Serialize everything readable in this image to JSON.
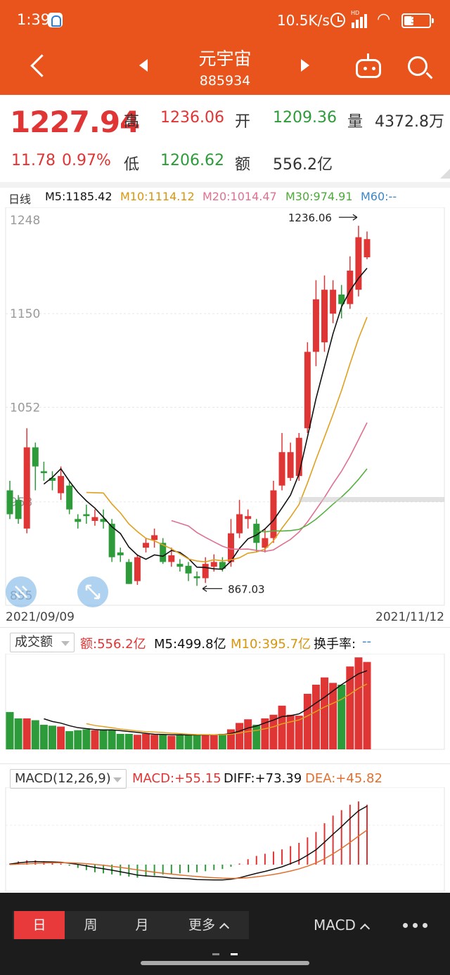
{
  "status_bar": {
    "time": "1:39",
    "net_rate": "10.5K/s",
    "network": "HD",
    "battery": "37"
  },
  "nav": {
    "title": "元宇宙",
    "code": "885934"
  },
  "quote": {
    "price": "1227.94",
    "change": "11.78",
    "change_pct": "0.97%",
    "high_label": "高",
    "high": "1236.06",
    "open_label": "开",
    "open": "1209.36",
    "vol_label": "量",
    "vol": "4372.8万",
    "low_label": "低",
    "low": "1206.62",
    "amt_label": "额",
    "amt": "556.2亿"
  },
  "kline_legend": {
    "period": "日线",
    "m5": "M5:1185.42",
    "m10": "M10:1114.12",
    "m20": "M20:1014.47",
    "m30": "M30:974.91",
    "m60": "M60:--"
  },
  "kline_axis": {
    "y1": "1248",
    "y2": "1150",
    "y3": "1052",
    "y4": "953",
    "y5": "855"
  },
  "annotations": {
    "max": "1236.06",
    "min": "867.03"
  },
  "dates": {
    "start": "2021/09/09",
    "end": "2021/11/12"
  },
  "volume": {
    "selector": "成交额",
    "amt": "额:556.2亿",
    "m5": "M5:499.8亿",
    "m10": "M10:395.7亿",
    "turnover": "换手率:",
    "turnover_val": "--"
  },
  "macd": {
    "selector": "MACD(12,26,9)",
    "macd": "MACD:+55.15",
    "diff": "DIFF:+73.39",
    "dea": "DEA:+45.82"
  },
  "bottom": {
    "tab_day": "日",
    "tab_week": "周",
    "tab_month": "月",
    "tab_more": "更多",
    "indicator": "MACD"
  },
  "colors": {
    "header": "#e9541c",
    "up": "#e03535",
    "down": "#2e9b3a",
    "m5": "#111111",
    "m10": "#e0a020",
    "m20": "#e07090",
    "m30": "#55b040"
  },
  "chart_data": [
    {
      "type": "candlestick",
      "title": "日线",
      "x_range": [
        "2021/09/09",
        "2021/11/12"
      ],
      "ylim": [
        855,
        1248
      ],
      "y_ticks": [
        1248,
        1150,
        1052,
        953,
        855
      ],
      "candles": [
        {
          "o": 965,
          "c": 940,
          "h": 975,
          "l": 935
        },
        {
          "o": 955,
          "c": 935,
          "h": 960,
          "l": 930
        },
        {
          "o": 925,
          "c": 1010,
          "h": 1030,
          "l": 920
        },
        {
          "o": 1010,
          "c": 990,
          "h": 1015,
          "l": 965
        },
        {
          "o": 985,
          "c": 983,
          "h": 995,
          "l": 975
        },
        {
          "o": 978,
          "c": 975,
          "h": 985,
          "l": 965
        },
        {
          "o": 962,
          "c": 980,
          "h": 990,
          "l": 955
        },
        {
          "o": 970,
          "c": 945,
          "h": 975,
          "l": 940
        },
        {
          "o": 935,
          "c": 932,
          "h": 940,
          "l": 925
        },
        {
          "o": 940,
          "c": 938,
          "h": 950,
          "l": 930
        },
        {
          "o": 933,
          "c": 937,
          "h": 945,
          "l": 928
        },
        {
          "o": 935,
          "c": 932,
          "h": 945,
          "l": 925
        },
        {
          "o": 930,
          "c": 895,
          "h": 935,
          "l": 890
        },
        {
          "o": 900,
          "c": 897,
          "h": 905,
          "l": 890
        },
        {
          "o": 890,
          "c": 867,
          "h": 893,
          "l": 867
        },
        {
          "o": 870,
          "c": 895,
          "h": 898,
          "l": 866
        },
        {
          "o": 905,
          "c": 910,
          "h": 915,
          "l": 900
        },
        {
          "o": 913,
          "c": 918,
          "h": 925,
          "l": 905
        },
        {
          "o": 910,
          "c": 890,
          "h": 915,
          "l": 888
        },
        {
          "o": 890,
          "c": 897,
          "h": 905,
          "l": 885
        },
        {
          "o": 888,
          "c": 885,
          "h": 893,
          "l": 880
        },
        {
          "o": 886,
          "c": 878,
          "h": 890,
          "l": 870
        },
        {
          "o": 875,
          "c": 873,
          "h": 880,
          "l": 865
        },
        {
          "o": 873,
          "c": 888,
          "h": 895,
          "l": 868
        },
        {
          "o": 885,
          "c": 890,
          "h": 898,
          "l": 880
        },
        {
          "o": 890,
          "c": 883,
          "h": 895,
          "l": 880
        },
        {
          "o": 890,
          "c": 920,
          "h": 935,
          "l": 885
        },
        {
          "o": 920,
          "c": 940,
          "h": 955,
          "l": 915
        },
        {
          "o": 935,
          "c": 938,
          "h": 945,
          "l": 925
        },
        {
          "o": 930,
          "c": 910,
          "h": 935,
          "l": 900
        },
        {
          "o": 905,
          "c": 915,
          "h": 925,
          "l": 900
        },
        {
          "o": 915,
          "c": 965,
          "h": 975,
          "l": 910
        },
        {
          "o": 970,
          "c": 1005,
          "h": 1025,
          "l": 965
        },
        {
          "o": 978,
          "c": 1005,
          "h": 1015,
          "l": 975
        },
        {
          "o": 980,
          "c": 1020,
          "h": 1025,
          "l": 975
        },
        {
          "o": 1030,
          "c": 1110,
          "h": 1120,
          "l": 1025
        },
        {
          "o": 1110,
          "c": 1165,
          "h": 1185,
          "l": 1095
        },
        {
          "o": 1120,
          "c": 1175,
          "h": 1190,
          "l": 1110
        },
        {
          "o": 1150,
          "c": 1175,
          "h": 1185,
          "l": 1140
        },
        {
          "o": 1170,
          "c": 1160,
          "h": 1180,
          "l": 1145
        },
        {
          "o": 1160,
          "c": 1195,
          "h": 1210,
          "l": 1155
        },
        {
          "o": 1175,
          "c": 1230,
          "h": 1242,
          "l": 1168
        },
        {
          "o": 1209,
          "c": 1228,
          "h": 1236,
          "l": 1207
        }
      ]
    },
    {
      "type": "bar",
      "title": "成交额",
      "values": [
        41,
        34,
        34,
        32,
        27,
        26,
        25,
        20,
        21,
        22,
        21,
        22,
        21,
        17,
        17,
        16,
        17,
        16,
        16,
        15,
        16,
        16,
        16,
        16,
        16,
        17,
        22,
        29,
        33,
        27,
        34,
        38,
        48,
        38,
        37,
        61,
        71,
        79,
        73,
        71,
        91,
        101,
        96
      ]
    },
    {
      "type": "bar",
      "title": "MACD",
      "values": [
        1,
        3,
        4,
        4,
        3,
        2,
        1,
        -1,
        -3,
        -5,
        -7,
        -8,
        -9,
        -10,
        -11,
        -12,
        -11,
        -10,
        -9,
        -9,
        -8,
        -7,
        -7,
        -6,
        -5,
        -4,
        -2,
        1,
        5,
        8,
        10,
        12,
        14,
        17,
        20,
        25,
        30,
        38,
        45,
        50,
        55,
        58,
        55
      ]
    }
  ]
}
